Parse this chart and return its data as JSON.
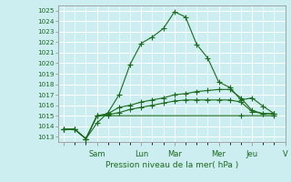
{
  "xlabel": "Pression niveau de la mer( hPa )",
  "bg_color": "#cceef0",
  "grid_color": "#ffffff",
  "line_color": "#1a6b1a",
  "ylim": [
    1012.5,
    1025.5
  ],
  "yticks": [
    1013,
    1014,
    1015,
    1016,
    1017,
    1018,
    1019,
    1020,
    1021,
    1022,
    1023,
    1024,
    1025
  ],
  "day_labels": [
    "",
    "Sam",
    "Lun",
    "Mar",
    "Mer",
    "Jeu",
    "V"
  ],
  "line1_x": [
    0,
    1,
    2,
    3,
    4,
    5,
    6,
    7,
    8,
    9,
    10,
    11,
    12,
    13,
    14,
    15,
    16,
    17,
    18,
    19
  ],
  "line1_y": [
    1013.7,
    1013.7,
    1012.8,
    1014.3,
    1015.3,
    1017.0,
    1019.9,
    1021.9,
    1022.5,
    1023.3,
    1024.9,
    1024.4,
    1021.8,
    1020.5,
    1018.2,
    1017.7,
    1016.5,
    1016.7,
    1015.9,
    1015.2
  ],
  "line2_x": [
    0,
    1,
    2,
    3,
    4,
    5,
    6,
    7,
    8,
    9,
    10,
    11,
    12,
    13,
    14,
    15,
    16,
    17,
    18,
    19
  ],
  "line2_y": [
    1013.7,
    1013.7,
    1012.8,
    1015.0,
    1015.2,
    1015.8,
    1016.0,
    1016.3,
    1016.5,
    1016.7,
    1017.0,
    1017.1,
    1017.3,
    1017.4,
    1017.5,
    1017.5,
    1016.7,
    1015.5,
    1015.2,
    1015.2
  ],
  "line3_x": [
    0,
    1,
    2,
    3,
    4,
    5,
    6,
    7,
    8,
    9,
    10,
    11,
    12,
    13,
    14,
    15,
    16,
    17,
    18,
    19
  ],
  "line3_y": [
    1013.7,
    1013.7,
    1012.8,
    1015.0,
    1015.1,
    1015.3,
    1015.6,
    1015.8,
    1016.0,
    1016.2,
    1016.4,
    1016.5,
    1016.5,
    1016.5,
    1016.5,
    1016.5,
    1016.3,
    1015.4,
    1015.2,
    1015.2
  ],
  "line4_x": [
    0,
    1,
    2,
    3,
    4,
    16,
    19
  ],
  "line4_y": [
    1013.7,
    1013.7,
    1012.8,
    1015.0,
    1015.0,
    1015.0,
    1015.0
  ],
  "n_points": 20,
  "day_tick_positions": [
    0,
    3,
    7,
    10,
    14,
    17,
    20
  ]
}
